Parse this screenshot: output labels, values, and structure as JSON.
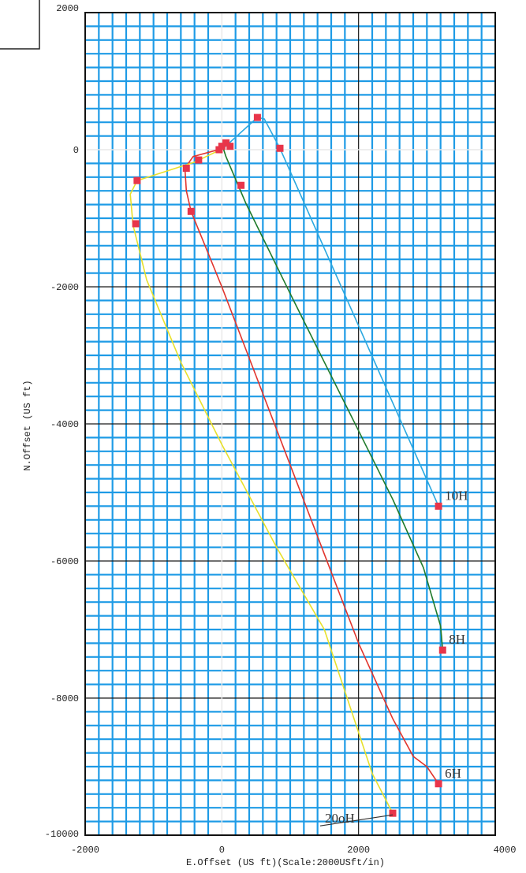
{
  "chart_data": {
    "type": "line",
    "xlabel": "E.Offset (US ft)(Scale:2000USft/in)",
    "ylabel": "N.Offset (US ft)",
    "xlim": [
      -2000,
      4000
    ],
    "ylim": [
      -10000,
      2000
    ],
    "x_ticks": [
      "-2000",
      "0",
      "2000",
      "4000"
    ],
    "y_ticks": [
      "2000",
      "0",
      "-2000",
      "-4000",
      "-6000",
      "-8000",
      "-10000"
    ],
    "grid": true,
    "colors": {
      "grid_minor": "#1e9be6",
      "grid_major": "#1a1a1a",
      "marker": "#e8354a",
      "well_10H": "#2aa8e0",
      "well_8H": "#1f7a2a",
      "well_6H": "#e2342c",
      "well_20H": "#e8e02a"
    },
    "series": [
      {
        "name": "10H",
        "color": "#2aa8e0",
        "x": [
          20,
          520,
          620,
          850,
          3170
        ],
        "y": [
          20,
          470,
          450,
          20,
          -5200
        ],
        "markers_x": [
          520,
          850,
          3170
        ],
        "markers_y": [
          470,
          20,
          -5200
        ]
      },
      {
        "name": "8H",
        "color": "#1f7a2a",
        "x": [
          20,
          60,
          350,
          1000,
          1500,
          2000,
          2500,
          2950,
          3200,
          3230
        ],
        "y": [
          20,
          -100,
          -780,
          -2100,
          -3100,
          -4100,
          -5100,
          -6100,
          -6950,
          -7300
        ],
        "markers_x": [
          280,
          3230
        ],
        "markers_y": [
          -520,
          -7300
        ]
      },
      {
        "name": "6H",
        "color": "#e2342c",
        "x": [
          20,
          -420,
          -540,
          -520,
          -450,
          0,
          500,
          1000,
          1500,
          2000,
          2500,
          2800,
          3000,
          3170
        ],
        "y": [
          20,
          -100,
          -270,
          -600,
          -900,
          -2000,
          -3300,
          -4600,
          -5900,
          -7200,
          -8300,
          -8850,
          -9000,
          -9250
        ],
        "markers_x": [
          -520,
          -450,
          3170
        ],
        "markers_y": [
          -270,
          -900,
          -9250
        ]
      },
      {
        "name": "20H",
        "color": "#e8e02a",
        "x": [
          20,
          -400,
          -1240,
          -1340,
          -1300,
          -1100,
          -600,
          0,
          800,
          1500,
          1900,
          2200,
          2500
        ],
        "y": [
          20,
          -180,
          -450,
          -650,
          -1100,
          -1900,
          -3100,
          -4300,
          -5800,
          -7000,
          -8200,
          -9100,
          -9680
        ],
        "markers_x": [
          -1240,
          -1260,
          2500
        ],
        "markers_y": [
          -450,
          -1080,
          -9680
        ]
      }
    ],
    "cluster_markers_x": [
      -340,
      -40,
      0,
      60,
      120
    ],
    "cluster_markers_y": [
      -150,
      0,
      50,
      100,
      50
    ],
    "labels": [
      {
        "text": "10H",
        "series": "10H"
      },
      {
        "text": "8H",
        "series": "8H"
      },
      {
        "text": "6H",
        "series": "6H"
      },
      {
        "text": "20oH",
        "series": "20H"
      }
    ]
  }
}
